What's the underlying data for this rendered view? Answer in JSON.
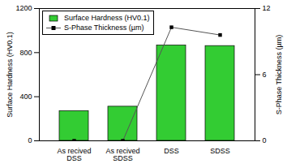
{
  "chart_data": {
    "type": "bar",
    "categories": [
      "As recived DSS",
      "As recived SDSS",
      "DSS",
      "SDSS"
    ],
    "series": [
      {
        "name": "Surface Hardness (HV0.1)",
        "type": "bar",
        "color": "#33cc33",
        "values": [
          270,
          310,
          865,
          860
        ]
      },
      {
        "name": "S-Phase Thickness (µm)",
        "type": "line",
        "axis": "y2",
        "color": "#555555",
        "marker": "square",
        "values": [
          0,
          0,
          10.3,
          9.6
        ]
      }
    ],
    "ylabel": "Surface Hardness (HV0.1)",
    "y2label": "S-Phase Thickness (µm)",
    "ylim": [
      0,
      1200
    ],
    "yticks": [
      0,
      400,
      800,
      1200
    ],
    "y2lim": [
      0,
      12
    ],
    "y2ticks": [
      0,
      6,
      12
    ],
    "legend": "top-left"
  }
}
